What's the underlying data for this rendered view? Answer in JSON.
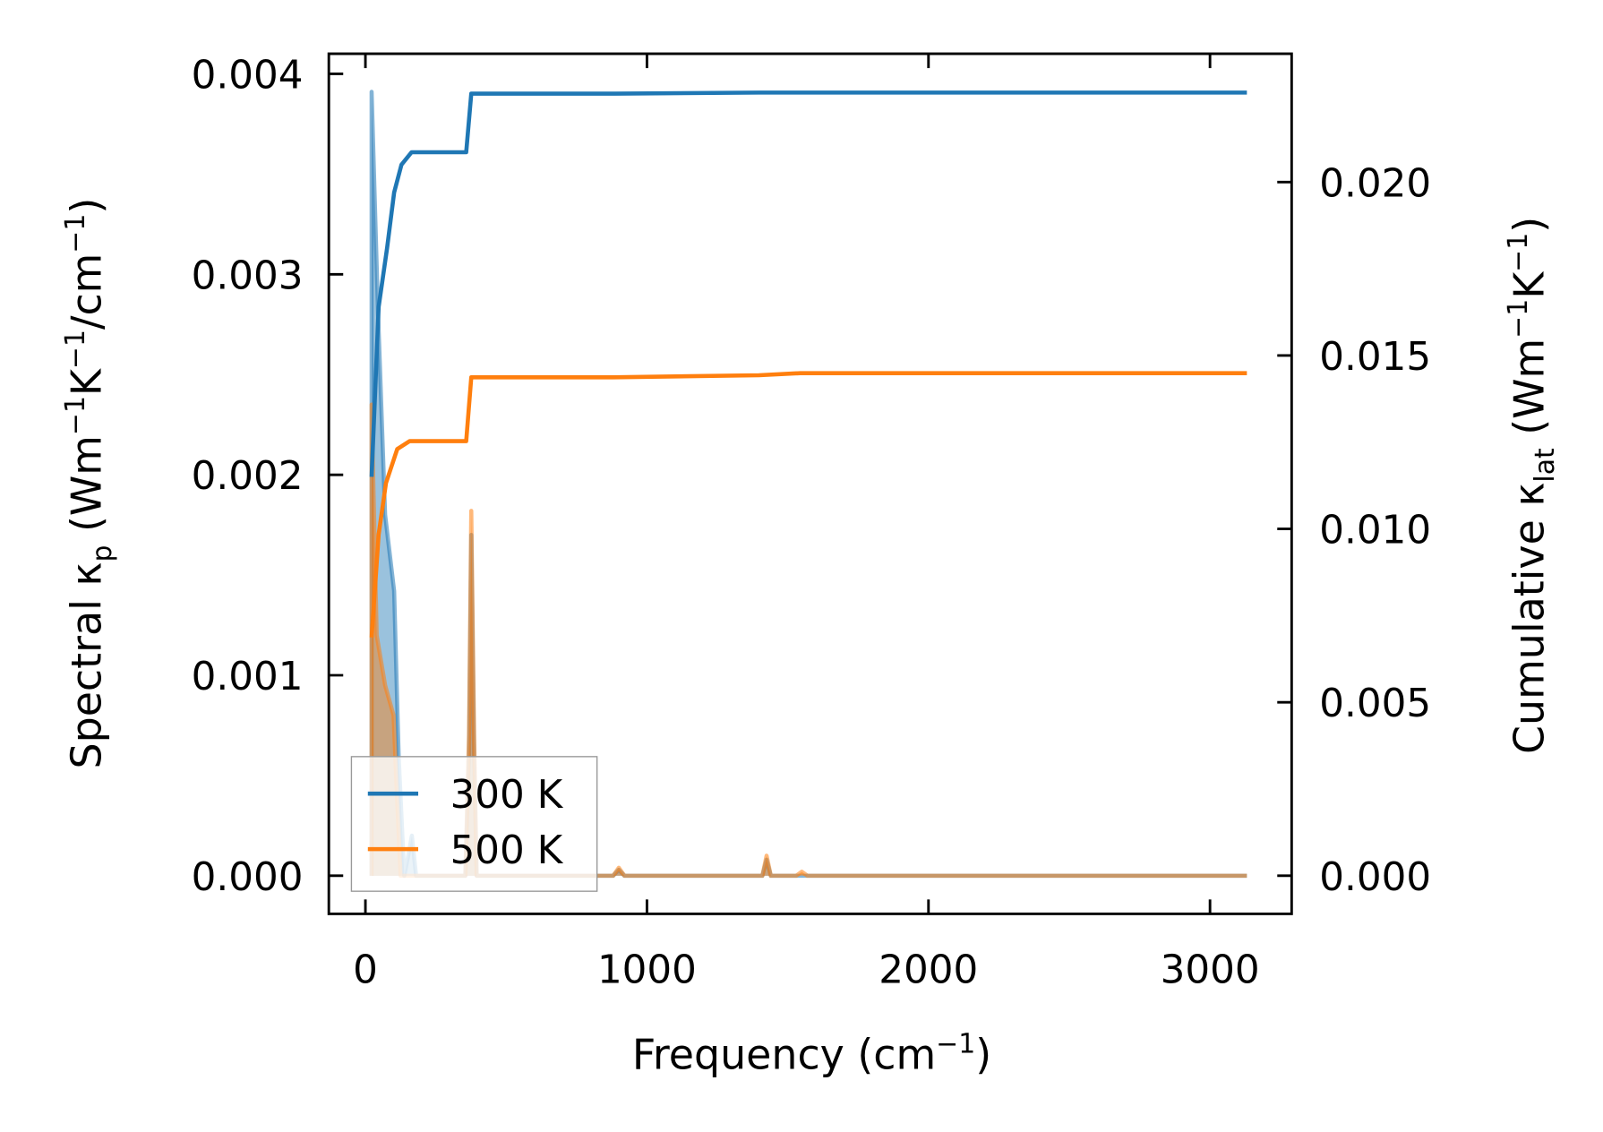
{
  "chart_data": {
    "type": "line",
    "title": "",
    "xlabel": {
      "main": "Frequency (cm",
      "sup": "−1",
      "end": ")"
    },
    "ylabel_left": {
      "a": "Spectral κ",
      "sub": "p",
      "b": " (Wm",
      "sup1": "−1",
      "c": "K",
      "sup2": "−1",
      "d": "/cm",
      "sup3": "−1",
      "e": ")"
    },
    "ylabel_right": {
      "a": "Cumulative κ",
      "sub": "lat",
      "b": " (Wm",
      "sup1": "−1",
      "c": "K",
      "sup2": "−1",
      "e": ")"
    },
    "xlim": [
      -130,
      3290
    ],
    "ylim_left": [
      -0.00019,
      0.0041
    ],
    "ylim_right": [
      -0.0011,
      0.0237
    ],
    "xticks": [
      "0",
      "1000",
      "2000",
      "3000"
    ],
    "xtick_values": [
      0,
      1000,
      2000,
      3000
    ],
    "yticks_left": [
      "0.000",
      "0.001",
      "0.002",
      "0.003",
      "0.004"
    ],
    "ytick_left_values": [
      0,
      0.001,
      0.002,
      0.003,
      0.004
    ],
    "yticks_right": [
      "0.000",
      "0.005",
      "0.010",
      "0.015",
      "0.020"
    ],
    "ytick_right_values": [
      0,
      0.005,
      0.01,
      0.015,
      0.02
    ],
    "grid": false,
    "legend": {
      "placement": "lower-left",
      "entries": [
        "300 K",
        "500 K"
      ]
    },
    "series": [
      {
        "name": "300 K",
        "color": "#1f77b4",
        "spectral": [
          [
            22,
            0
          ],
          [
            22,
            0.00391
          ],
          [
            45,
            0.0028
          ],
          [
            70,
            0.0018
          ],
          [
            102,
            0.00142
          ],
          [
            118,
            0.0006
          ],
          [
            138,
            0
          ],
          [
            152,
            0.0001
          ],
          [
            165,
            0.0002
          ],
          [
            180,
            0
          ],
          [
            355,
            0
          ],
          [
            368,
            0.0006
          ],
          [
            376,
            0.0017
          ],
          [
            386,
            0.0006
          ],
          [
            395,
            0
          ],
          [
            880,
            0
          ],
          [
            900,
            3e-05
          ],
          [
            920,
            0
          ],
          [
            1410,
            0
          ],
          [
            1425,
            8e-05
          ],
          [
            1440,
            0
          ],
          [
            3131,
            0
          ]
        ],
        "cumulative": [
          [
            22,
            0.0115
          ],
          [
            47,
            0.0164
          ],
          [
            77,
            0.0181
          ],
          [
            102,
            0.0197
          ],
          [
            128,
            0.0205
          ],
          [
            164,
            0.02086
          ],
          [
            358,
            0.02086
          ],
          [
            376,
            0.02255
          ],
          [
            887,
            0.02255
          ],
          [
            1398,
            0.02258
          ],
          [
            3131,
            0.02258
          ]
        ]
      },
      {
        "name": "500 K",
        "color": "#ff7f0e",
        "spectral": [
          [
            22,
            0
          ],
          [
            22,
            0.00235
          ],
          [
            40,
            0.0012
          ],
          [
            70,
            0.00095
          ],
          [
            100,
            0.0008
          ],
          [
            112,
            0.0004
          ],
          [
            125,
            0
          ],
          [
            355,
            0
          ],
          [
            368,
            0.0007
          ],
          [
            376,
            0.00182
          ],
          [
            386,
            0.0007
          ],
          [
            395,
            0
          ],
          [
            880,
            0
          ],
          [
            900,
            4e-05
          ],
          [
            920,
            0
          ],
          [
            1410,
            0
          ],
          [
            1425,
            0.0001
          ],
          [
            1440,
            0
          ],
          [
            1530,
            0
          ],
          [
            1550,
            2e-05
          ],
          [
            1570,
            0
          ],
          [
            3131,
            0
          ]
        ],
        "cumulative": [
          [
            22,
            0.00687
          ],
          [
            47,
            0.00984
          ],
          [
            73,
            0.01132
          ],
          [
            113,
            0.0123
          ],
          [
            157,
            0.01253
          ],
          [
            358,
            0.01253
          ],
          [
            376,
            0.01437
          ],
          [
            880,
            0.01437
          ],
          [
            1398,
            0.01443
          ],
          [
            1544,
            0.01449
          ],
          [
            3131,
            0.01449
          ]
        ]
      }
    ]
  }
}
